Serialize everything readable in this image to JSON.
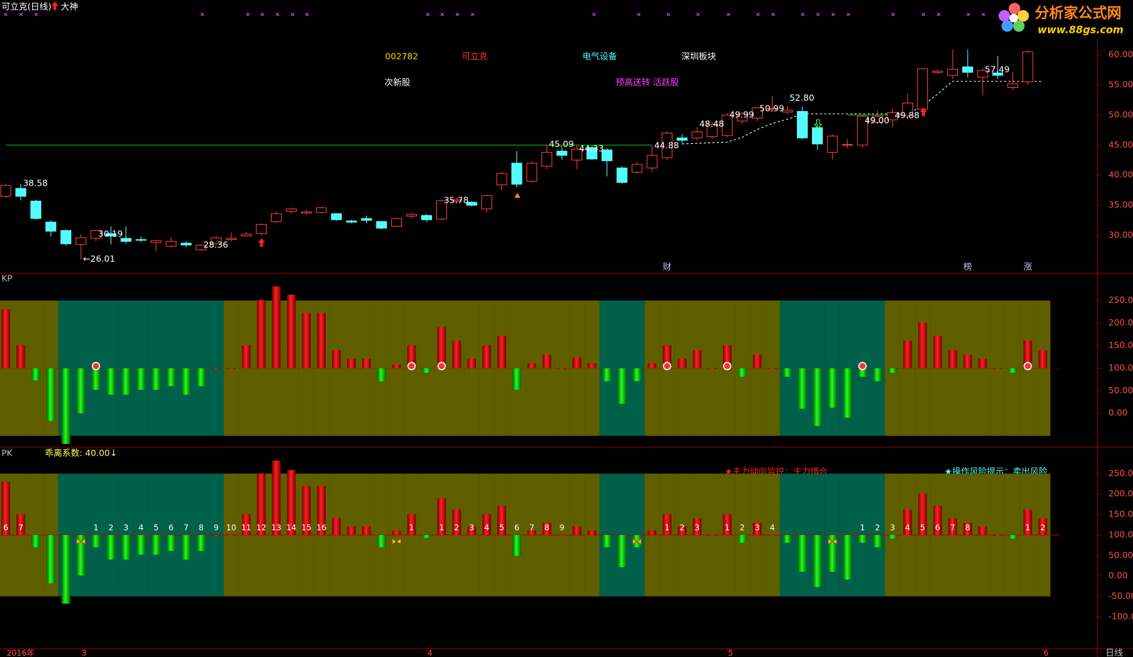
{
  "chart_data": [
    {
      "type": "candlestick",
      "title": "可立克(日线)",
      "subtitle": "大神",
      "categories": [
        "2016年",
        null,
        null,
        null,
        null,
        "3",
        null,
        null,
        null,
        null,
        null,
        null,
        null,
        null,
        null,
        null,
        null,
        null,
        null,
        null,
        null,
        null,
        null,
        null,
        null,
        null,
        null,
        null,
        "4",
        null,
        null,
        null,
        null,
        null,
        null,
        null,
        null,
        null,
        null,
        null,
        null,
        null,
        null,
        null,
        null,
        null,
        null,
        null,
        "5",
        null,
        null,
        null,
        null,
        null,
        null,
        null,
        null,
        null,
        null,
        null,
        null,
        null,
        null,
        null,
        null,
        null,
        null,
        null,
        null,
        "6"
      ],
      "open": [
        36.5,
        37.8,
        35.7,
        32.2,
        30.8,
        28.5,
        29.5,
        30.3,
        29.5,
        29.3,
        28.8,
        28.2,
        28.7,
        27.6,
        28.6,
        29.3,
        29.9,
        30.3,
        32.3,
        34,
        33.7,
        33.8,
        33.6,
        32.4,
        32.8,
        32.3,
        31.5,
        33.2,
        33.3,
        32.7,
        35.7,
        35.5,
        34.4,
        38.4,
        42,
        39,
        41.5,
        44,
        42.5,
        44.6,
        44.2,
        41.2,
        40.5,
        41.2,
        42.9,
        46.2,
        46.2,
        46.4,
        46.6,
        49,
        49.5,
        50.99,
        50.5,
        50.6,
        47.9,
        43.8,
        45,
        45,
        48.8,
        49.2,
        49.88,
        51,
        57.1,
        56.6,
        58,
        56.3,
        57,
        54.6,
        55.5,
        null
      ],
      "close": [
        38.3,
        36.5,
        32.8,
        30.7,
        28.6,
        29.6,
        30.8,
        29.9,
        29,
        29.2,
        29.1,
        29,
        28.4,
        28.36,
        29.6,
        29.5,
        30.2,
        31.8,
        33.6,
        34.4,
        33.9,
        34.6,
        32.6,
        32.2,
        32.5,
        31.2,
        32.8,
        33.5,
        32.6,
        35.78,
        35.9,
        35,
        36.6,
        40.3,
        38.5,
        42,
        43.8,
        43.3,
        44.33,
        42.7,
        42.4,
        38.8,
        41.8,
        43.3,
        47,
        45.8,
        47.2,
        48.45,
        49.99,
        50.2,
        51.2,
        51.1,
        50.8,
        46.2,
        45.2,
        46.5,
        45.1,
        49.8,
        49.8,
        50.4,
        52,
        57.7,
        57.3,
        57.6,
        57.1,
        57.4,
        56.6,
        55.2,
        60.5,
        null
      ],
      "high": [
        38.6,
        38.58,
        35.9,
        32.5,
        31,
        30.2,
        30.9,
        31.5,
        31.5,
        29.8,
        29.2,
        29.7,
        29,
        28.6,
        29.9,
        30.5,
        30.6,
        32,
        34,
        34.6,
        34.3,
        34.8,
        33.7,
        32.6,
        33.3,
        32.4,
        33,
        33.8,
        33.6,
        35.9,
        36.3,
        35.7,
        36.8,
        40.5,
        44,
        42.3,
        45.09,
        44.6,
        45,
        44.9,
        44.5,
        41.5,
        42.2,
        44.88,
        47.3,
        46.8,
        48,
        48.8,
        50.3,
        50.5,
        51.3,
        53.2,
        51.5,
        51.4,
        48.5,
        46.8,
        46,
        50,
        50.8,
        51,
        53.5,
        57.8,
        57.5,
        60.9,
        60.9,
        57.8,
        59.8,
        57.2,
        60.8,
        null
      ],
      "low": [
        36.2,
        35.8,
        32.6,
        29.8,
        28.3,
        26.01,
        29,
        28.5,
        28.6,
        28.9,
        27.3,
        28,
        28,
        27.4,
        28.4,
        29,
        29.8,
        30,
        32,
        33.6,
        33.5,
        33.6,
        32.4,
        32,
        32,
        31,
        31.4,
        32.8,
        32.2,
        32.5,
        35.3,
        34.8,
        33.8,
        37.5,
        38,
        38.8,
        41,
        42.6,
        41,
        42.5,
        39.8,
        38.6,
        40.2,
        40.5,
        42.5,
        45.3,
        45.8,
        46,
        46.3,
        48.5,
        49,
        50.5,
        50.2,
        46,
        44.2,
        42.6,
        44.5,
        44.6,
        48.5,
        48,
        49.3,
        50.8,
        56.8,
        56,
        56.3,
        53.3,
        56,
        54.2,
        55,
        null
      ],
      "up_color": "#ff3c3c",
      "down_color": "#54fcfc",
      "series": [
        {
          "color": "#00c000",
          "values": [
            45,
            45,
            45,
            45,
            45,
            45,
            45,
            45,
            45,
            45,
            45,
            45,
            45,
            45,
            45,
            45,
            45,
            45,
            45,
            45,
            45,
            45,
            45,
            45,
            45,
            45,
            45,
            45,
            45,
            45,
            45,
            45,
            45,
            45,
            45,
            45,
            45,
            45,
            45,
            45,
            45,
            45,
            45,
            45,
            null,
            null,
            null,
            null,
            null,
            null,
            null,
            null,
            null,
            null,
            null,
            null,
            50,
            50,
            50,
            50,
            50,
            null,
            null,
            null,
            null,
            null,
            null,
            null,
            null,
            null
          ]
        },
        {
          "color": "#ffffff",
          "dashed": true,
          "values": [
            null,
            null,
            null,
            null,
            null,
            null,
            null,
            null,
            null,
            null,
            null,
            null,
            null,
            null,
            null,
            null,
            null,
            null,
            null,
            null,
            null,
            null,
            null,
            null,
            null,
            null,
            null,
            null,
            null,
            null,
            null,
            null,
            null,
            null,
            null,
            null,
            null,
            null,
            null,
            null,
            null,
            null,
            null,
            null,
            null,
            45.2,
            45.3,
            45.4,
            45.5,
            46.3,
            47.6,
            48.6,
            49.3,
            50.2,
            50.2,
            50.2,
            50.2,
            50.2,
            50.2,
            50.2,
            50.2,
            51.5,
            53.5,
            55.6,
            55.6,
            55.6,
            55.6,
            55.6,
            55.6,
            55.6
          ]
        }
      ],
      "annotations": [
        {
          "index": 1,
          "value": 38.58,
          "label": "38.58"
        },
        {
          "index": 5,
          "value": 26.01,
          "label": "←26.01"
        },
        {
          "index": 6,
          "value": 30.19,
          "label": "30.19"
        },
        {
          "index": 13,
          "value": 28.36,
          "label": "28.36"
        },
        {
          "index": 29,
          "value": 35.78,
          "label": "35.78"
        },
        {
          "index": 36,
          "value": 45.09,
          "label": "45.09"
        },
        {
          "index": 38,
          "value": 44.33,
          "label": "44.33"
        },
        {
          "index": 43,
          "value": 44.88,
          "label": "44.88"
        },
        {
          "index": 46,
          "value": 48.48,
          "label": "48.48"
        },
        {
          "index": 48,
          "value": 49.99,
          "label": "49.99"
        },
        {
          "index": 50,
          "value": 50.99,
          "label": "50.99"
        },
        {
          "index": 52,
          "value": 52.8,
          "label": "52.80"
        },
        {
          "index": 57,
          "value": 49.0,
          "label": "49.00"
        },
        {
          "index": 59,
          "value": 49.88,
          "label": "49.88"
        },
        {
          "index": 65,
          "value": 57.49,
          "label": "57.49"
        }
      ],
      "markers": [
        {
          "index": 44,
          "label": "财"
        },
        {
          "index": 64,
          "label": "榜"
        },
        {
          "index": 68,
          "label": "涨"
        }
      ],
      "info": [
        "002782",
        "可立克",
        "电气设备",
        "深圳板块",
        "次新股",
        "预高送转 活跃股"
      ],
      "ylim": [
        23.76,
        66.72
      ],
      "yticks": [
        {
          "value": 30,
          "label": "30.00"
        },
        {
          "value": 35,
          "label": "35.00"
        },
        {
          "value": 40,
          "label": "40.00"
        },
        {
          "value": 45,
          "label": "45.00"
        },
        {
          "value": 50,
          "label": "50.00"
        },
        {
          "value": 55,
          "label": "55.00"
        },
        {
          "value": 60,
          "label": "60.00"
        }
      ]
    },
    {
      "type": "bar",
      "title": "KP",
      "baseline": 100,
      "values": [
        231,
        151,
        73,
        -17,
        -68,
        0,
        52,
        41,
        41,
        52,
        52,
        60,
        41,
        60,
        100,
        100,
        151,
        251,
        281,
        263,
        223,
        223,
        140,
        121,
        121,
        71,
        108,
        151,
        90,
        191,
        161,
        121,
        151,
        172,
        52,
        111,
        130,
        100,
        124,
        111,
        71,
        21,
        71,
        111,
        151,
        121,
        140,
        100,
        151,
        81,
        130,
        100,
        81,
        10,
        -28,
        12,
        -10,
        81,
        71,
        90,
        161,
        201,
        172,
        140,
        130,
        121,
        100,
        90,
        161,
        140
      ],
      "band_range": [
        -50,
        250
      ],
      "band_colors": [
        "#5f5f00",
        "#5f5f00",
        "#5f5f00",
        "#5f5f00",
        "#00604a",
        "#00604a",
        "#00604a",
        "#00604a",
        "#00604a",
        "#00604a",
        "#00604a",
        "#00604a",
        "#00604a",
        "#00604a",
        "#00604a",
        "#5f5f00",
        "#5f5f00",
        "#5f5f00",
        "#5f5f00",
        "#5f5f00",
        "#5f5f00",
        "#5f5f00",
        "#5f5f00",
        "#5f5f00",
        "#5f5f00",
        "#5f5f00",
        "#5f5f00",
        "#5f5f00",
        "#5f5f00",
        "#5f5f00",
        "#5f5f00",
        "#5f5f00",
        "#5f5f00",
        "#5f5f00",
        "#5f5f00",
        "#5f5f00",
        "#5f5f00",
        "#5f5f00",
        "#5f5f00",
        "#5f5f00",
        "#00604a",
        "#00604a",
        "#00604a",
        "#5f5f00",
        "#5f5f00",
        "#5f5f00",
        "#5f5f00",
        "#5f5f00",
        "#5f5f00",
        "#5f5f00",
        "#5f5f00",
        "#5f5f00",
        "#00604a",
        "#00604a",
        "#00604a",
        "#00604a",
        "#00604a",
        "#00604a",
        "#00604a",
        "#5f5f00",
        "#5f5f00",
        "#5f5f00",
        "#5f5f00",
        "#5f5f00",
        "#5f5f00",
        "#5f5f00",
        "#5f5f00",
        "#5f5f00",
        "#5f5f00",
        "#5f5f00"
      ],
      "ylim": [
        -73,
        308
      ],
      "yticks": [
        {
          "value": 0,
          "label": "0.00"
        },
        {
          "value": 50,
          "label": "50.00"
        },
        {
          "value": 100,
          "label": "100.00"
        },
        {
          "value": 150,
          "label": "150.00"
        },
        {
          "value": 200,
          "label": "200.00"
        },
        {
          "value": 250,
          "label": "250.00"
        }
      ]
    },
    {
      "type": "bar",
      "title": "PK",
      "subtitle": "乖离系数: 40.00↓",
      "baseline": 100,
      "values": [
        230,
        151,
        70,
        -18,
        -68,
        1,
        70,
        40,
        40,
        52,
        52,
        61,
        40,
        61,
        100,
        100,
        151,
        250,
        282,
        259,
        220,
        220,
        142,
        121,
        121,
        70,
        111,
        151,
        93,
        190,
        162,
        121,
        151,
        171,
        49,
        111,
        130,
        100,
        121,
        111,
        70,
        21,
        70,
        111,
        151,
        121,
        141,
        100,
        151,
        81,
        130,
        100,
        81,
        10,
        -27,
        10,
        -9,
        81,
        70,
        91,
        162,
        201,
        171,
        141,
        130,
        121,
        100,
        91,
        162,
        141
      ],
      "counts": [
        6,
        7,
        null,
        null,
        null,
        null,
        1,
        2,
        3,
        4,
        5,
        6,
        7,
        8,
        9,
        10,
        11,
        12,
        13,
        14,
        15,
        16,
        null,
        null,
        null,
        null,
        null,
        1,
        null,
        1,
        2,
        3,
        4,
        5,
        6,
        7,
        8,
        9,
        null,
        null,
        null,
        null,
        null,
        null,
        1,
        2,
        3,
        null,
        1,
        2,
        3,
        4,
        null,
        null,
        null,
        null,
        null,
        1,
        2,
        3,
        4,
        5,
        6,
        7,
        8,
        null,
        null,
        null,
        1,
        2
      ],
      "notes": [
        "★主力动向监控：主力惜合",
        "★操作风险提示：卖出风险"
      ],
      "band_range": [
        -50,
        250
      ],
      "band_colors": [
        "#5f5f00",
        "#5f5f00",
        "#5f5f00",
        "#5f5f00",
        "#00604a",
        "#00604a",
        "#00604a",
        "#00604a",
        "#00604a",
        "#00604a",
        "#00604a",
        "#00604a",
        "#00604a",
        "#00604a",
        "#00604a",
        "#5f5f00",
        "#5f5f00",
        "#5f5f00",
        "#5f5f00",
        "#5f5f00",
        "#5f5f00",
        "#5f5f00",
        "#5f5f00",
        "#5f5f00",
        "#5f5f00",
        "#5f5f00",
        "#5f5f00",
        "#5f5f00",
        "#5f5f00",
        "#5f5f00",
        "#5f5f00",
        "#5f5f00",
        "#5f5f00",
        "#5f5f00",
        "#5f5f00",
        "#5f5f00",
        "#5f5f00",
        "#5f5f00",
        "#5f5f00",
        "#5f5f00",
        "#00604a",
        "#00604a",
        "#00604a",
        "#5f5f00",
        "#5f5f00",
        "#5f5f00",
        "#5f5f00",
        "#5f5f00",
        "#5f5f00",
        "#5f5f00",
        "#5f5f00",
        "#5f5f00",
        "#00604a",
        "#00604a",
        "#00604a",
        "#00604a",
        "#00604a",
        "#00604a",
        "#00604a",
        "#5f5f00",
        "#5f5f00",
        "#5f5f00",
        "#5f5f00",
        "#5f5f00",
        "#5f5f00",
        "#5f5f00",
        "#5f5f00",
        "#5f5f00",
        "#5f5f00",
        "#5f5f00"
      ],
      "ylim": [
        -177,
        310
      ],
      "yticks": [
        {
          "value": -100,
          "label": "-100.00"
        },
        {
          "value": -50,
          "label": "-50.00"
        },
        {
          "value": 0,
          "label": "0.00"
        },
        {
          "value": 50,
          "label": "50.00"
        },
        {
          "value": 100,
          "label": "100.00"
        },
        {
          "value": 150,
          "label": "150.00"
        },
        {
          "value": 200,
          "label": "200.00"
        },
        {
          "value": 250,
          "label": "250.00"
        }
      ]
    }
  ],
  "logo": {
    "title": "分析家公式网",
    "url": "www.88gs.com"
  },
  "period_label": "日线"
}
